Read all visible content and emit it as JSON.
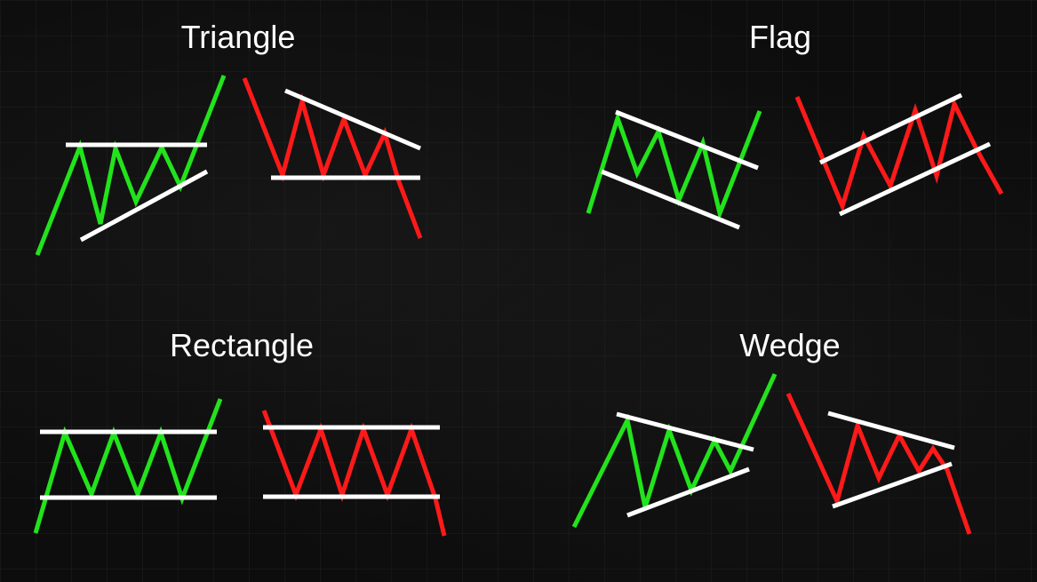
{
  "titles": {
    "triangle": "Triangle",
    "flag": "Flag",
    "rectangle": "Rectangle",
    "wedge": "Wedge"
  },
  "colors": {
    "bullish": "#22e31c",
    "bearish": "#ff1a1a",
    "trendline": "#ffffff",
    "background": "#0d0d0d"
  }
}
